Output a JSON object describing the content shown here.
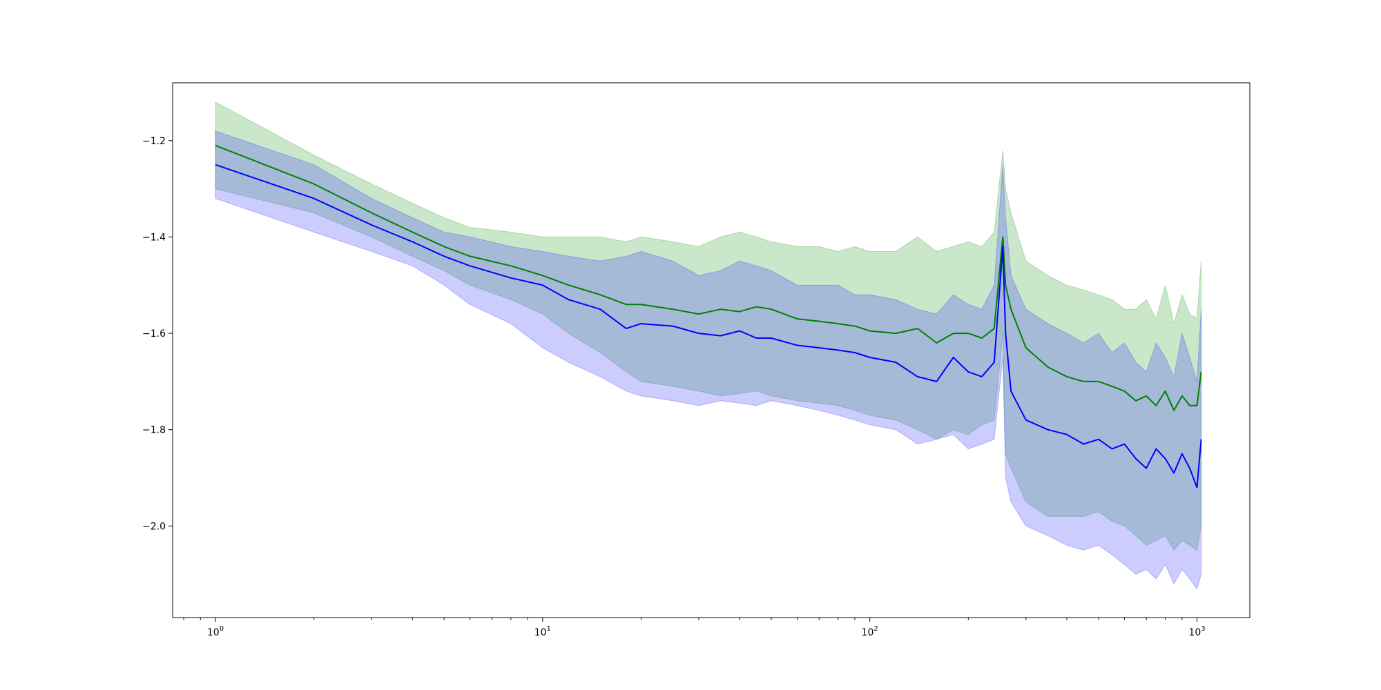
{
  "chart_data": {
    "type": "line",
    "xscale": "log",
    "xlim": [
      0.74,
      1450
    ],
    "ylim": [
      -2.19,
      -1.08
    ],
    "x_ticks": [
      1,
      10,
      100,
      1000
    ],
    "x_tick_labels": [
      {
        "base": "10",
        "exp": "0"
      },
      {
        "base": "10",
        "exp": "1"
      },
      {
        "base": "10",
        "exp": "2"
      },
      {
        "base": "10",
        "exp": "3"
      }
    ],
    "y_ticks": [
      -2.0,
      -1.8,
      -1.6,
      -1.4,
      -1.2
    ],
    "y_tick_labels": [
      "−2.0",
      "−1.8",
      "−1.6",
      "−1.4",
      "−1.2"
    ],
    "grid": false,
    "series": [
      {
        "color": "#008000",
        "band_color": "#2ca02c",
        "x": [
          1,
          2,
          3,
          4,
          5,
          6,
          8,
          10,
          12,
          15,
          18,
          20,
          25,
          30,
          35,
          40,
          45,
          50,
          60,
          70,
          80,
          90,
          100,
          120,
          140,
          160,
          180,
          200,
          220,
          240,
          255,
          260,
          270,
          300,
          350,
          400,
          450,
          500,
          550,
          600,
          650,
          700,
          750,
          800,
          850,
          900,
          950,
          1000,
          1030
        ],
        "mean": [
          -1.21,
          -1.29,
          -1.35,
          -1.39,
          -1.42,
          -1.44,
          -1.46,
          -1.48,
          -1.5,
          -1.52,
          -1.54,
          -1.54,
          -1.55,
          -1.56,
          -1.55,
          -1.555,
          -1.545,
          -1.55,
          -1.57,
          -1.575,
          -1.58,
          -1.585,
          -1.595,
          -1.6,
          -1.59,
          -1.62,
          -1.6,
          -1.6,
          -1.61,
          -1.59,
          -1.4,
          -1.5,
          -1.55,
          -1.63,
          -1.67,
          -1.69,
          -1.7,
          -1.7,
          -1.71,
          -1.72,
          -1.74,
          -1.73,
          -1.75,
          -1.72,
          -1.76,
          -1.73,
          -1.75,
          -1.75,
          -1.68
        ],
        "lower": [
          -1.3,
          -1.35,
          -1.4,
          -1.44,
          -1.47,
          -1.5,
          -1.53,
          -1.56,
          -1.6,
          -1.64,
          -1.68,
          -1.7,
          -1.71,
          -1.72,
          -1.73,
          -1.725,
          -1.72,
          -1.73,
          -1.74,
          -1.745,
          -1.75,
          -1.76,
          -1.77,
          -1.78,
          -1.8,
          -1.82,
          -1.8,
          -1.81,
          -1.79,
          -1.78,
          -1.6,
          -1.85,
          -1.88,
          -1.95,
          -1.98,
          -1.98,
          -1.98,
          -1.97,
          -1.99,
          -2.0,
          -2.02,
          -2.04,
          -2.03,
          -2.02,
          -2.05,
          -2.03,
          -2.04,
          -2.05,
          -2.0
        ],
        "upper": [
          -1.12,
          -1.23,
          -1.29,
          -1.33,
          -1.36,
          -1.38,
          -1.39,
          -1.4,
          -1.4,
          -1.4,
          -1.41,
          -1.4,
          -1.41,
          -1.42,
          -1.4,
          -1.39,
          -1.4,
          -1.41,
          -1.42,
          -1.42,
          -1.43,
          -1.42,
          -1.43,
          -1.43,
          -1.4,
          -1.43,
          -1.42,
          -1.41,
          -1.42,
          -1.39,
          -1.22,
          -1.3,
          -1.35,
          -1.45,
          -1.48,
          -1.5,
          -1.51,
          -1.52,
          -1.53,
          -1.55,
          -1.55,
          -1.53,
          -1.57,
          -1.5,
          -1.58,
          -1.52,
          -1.56,
          -1.57,
          -1.45
        ]
      },
      {
        "color": "#0000ff",
        "band_color": "#3333ff",
        "x": [
          1,
          2,
          3,
          4,
          5,
          6,
          8,
          10,
          12,
          15,
          18,
          20,
          25,
          30,
          35,
          40,
          45,
          50,
          60,
          70,
          80,
          90,
          100,
          120,
          140,
          160,
          180,
          200,
          220,
          240,
          255,
          260,
          270,
          300,
          350,
          400,
          450,
          500,
          550,
          600,
          650,
          700,
          750,
          800,
          850,
          900,
          950,
          1000,
          1030
        ],
        "mean": [
          -1.25,
          -1.32,
          -1.375,
          -1.41,
          -1.44,
          -1.46,
          -1.485,
          -1.5,
          -1.53,
          -1.55,
          -1.59,
          -1.58,
          -1.585,
          -1.6,
          -1.605,
          -1.595,
          -1.61,
          -1.61,
          -1.625,
          -1.63,
          -1.635,
          -1.64,
          -1.65,
          -1.66,
          -1.69,
          -1.7,
          -1.65,
          -1.68,
          -1.69,
          -1.66,
          -1.42,
          -1.6,
          -1.72,
          -1.78,
          -1.8,
          -1.81,
          -1.83,
          -1.82,
          -1.84,
          -1.83,
          -1.86,
          -1.88,
          -1.84,
          -1.86,
          -1.89,
          -1.85,
          -1.88,
          -1.92,
          -1.82
        ],
        "lower": [
          -1.32,
          -1.39,
          -1.43,
          -1.46,
          -1.5,
          -1.54,
          -1.58,
          -1.63,
          -1.66,
          -1.69,
          -1.72,
          -1.73,
          -1.74,
          -1.75,
          -1.74,
          -1.745,
          -1.75,
          -1.74,
          -1.75,
          -1.76,
          -1.77,
          -1.78,
          -1.79,
          -1.8,
          -1.83,
          -1.82,
          -1.81,
          -1.84,
          -1.83,
          -1.82,
          -1.65,
          -1.9,
          -1.95,
          -2.0,
          -2.02,
          -2.04,
          -2.05,
          -2.04,
          -2.06,
          -2.08,
          -2.1,
          -2.09,
          -2.11,
          -2.08,
          -2.12,
          -2.09,
          -2.11,
          -2.13,
          -2.1
        ],
        "upper": [
          -1.18,
          -1.25,
          -1.32,
          -1.36,
          -1.39,
          -1.4,
          -1.42,
          -1.43,
          -1.44,
          -1.45,
          -1.44,
          -1.43,
          -1.45,
          -1.48,
          -1.47,
          -1.45,
          -1.46,
          -1.47,
          -1.5,
          -1.5,
          -1.5,
          -1.52,
          -1.52,
          -1.53,
          -1.55,
          -1.56,
          -1.52,
          -1.54,
          -1.55,
          -1.5,
          -1.25,
          -1.36,
          -1.48,
          -1.55,
          -1.58,
          -1.6,
          -1.62,
          -1.6,
          -1.64,
          -1.62,
          -1.66,
          -1.68,
          -1.62,
          -1.65,
          -1.69,
          -1.6,
          -1.65,
          -1.7,
          -1.55
        ]
      }
    ]
  }
}
